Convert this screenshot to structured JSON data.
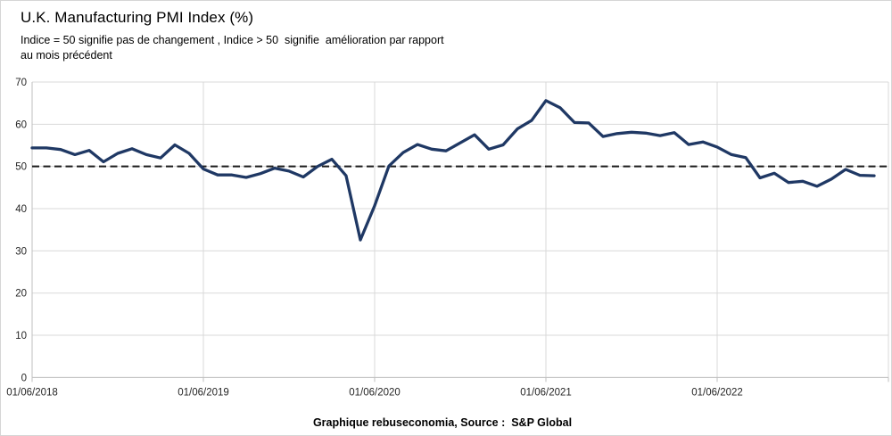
{
  "header": {
    "title": "U.K. Manufacturing PMI Index (%)",
    "subtitle_line1": "Indice = 50 signifie pas de changement , Indice > 50  signifie  amélioration par rapport",
    "subtitle_line2": "au mois précédent"
  },
  "footer": {
    "caption": "Graphique rebuseconomia, Source :  S&P Global"
  },
  "colors": {
    "series_line": "#1f3864",
    "reference_line": "#1a1a1a",
    "gridline": "#d9d9d9",
    "axis_line": "#bfbfbf",
    "tick_label": "#262626",
    "background": "#ffffff"
  },
  "chart_data": {
    "type": "line",
    "title": "U.K. Manufacturing PMI Index (%)",
    "xlabel": "",
    "ylabel": "",
    "ylim": [
      0,
      70
    ],
    "y_ticks": [
      0,
      10,
      20,
      30,
      40,
      50,
      60,
      70
    ],
    "x_tick_labels": [
      "01/06/2018",
      "01/06/2019",
      "01/06/2020",
      "01/06/2021",
      "01/06/2022"
    ],
    "grid": true,
    "legend_position": "none",
    "reference_line": {
      "value": 50,
      "style": "dashed",
      "color": "#1a1a1a"
    },
    "series": [
      {
        "name": "UK Manufacturing PMI",
        "color": "#1f3864",
        "dates": [
          "01/06/2018",
          "01/07/2018",
          "01/08/2018",
          "01/09/2018",
          "01/10/2018",
          "01/11/2018",
          "01/12/2018",
          "01/01/2019",
          "01/02/2019",
          "01/03/2019",
          "01/04/2019",
          "01/05/2019",
          "01/06/2019",
          "01/07/2019",
          "01/08/2019",
          "01/09/2019",
          "01/10/2019",
          "01/11/2019",
          "01/12/2019",
          "01/01/2020",
          "01/02/2020",
          "01/03/2020",
          "01/04/2020",
          "01/05/2020",
          "01/06/2020",
          "01/07/2020",
          "01/08/2020",
          "01/09/2020",
          "01/10/2020",
          "01/11/2020",
          "01/12/2020",
          "01/01/2021",
          "01/02/2021",
          "01/03/2021",
          "01/04/2021",
          "01/05/2021",
          "01/06/2021",
          "01/07/2021",
          "01/08/2021",
          "01/09/2021",
          "01/10/2021",
          "01/11/2021",
          "01/12/2021",
          "01/01/2022",
          "01/02/2022",
          "01/03/2022",
          "01/04/2022",
          "01/05/2022",
          "01/06/2022",
          "01/07/2022",
          "01/08/2022",
          "01/09/2022",
          "01/10/2022",
          "01/11/2022",
          "01/12/2022",
          "01/01/2023",
          "01/02/2023",
          "01/03/2023",
          "01/04/2023",
          "01/05/2023"
        ],
        "values": [
          54.4,
          54.4,
          54.0,
          52.8,
          53.8,
          51.1,
          53.1,
          54.2,
          52.8,
          52.0,
          55.1,
          53.1,
          49.4,
          48.0,
          48.0,
          47.4,
          48.3,
          49.6,
          48.9,
          47.5,
          50.0,
          51.7,
          47.8,
          32.6,
          40.7,
          50.1,
          53.3,
          55.2,
          54.1,
          53.7,
          55.6,
          57.5,
          54.1,
          55.1,
          58.9,
          60.9,
          65.6,
          63.9,
          60.4,
          60.3,
          57.1,
          57.8,
          58.1,
          57.9,
          57.3,
          58.0,
          55.2,
          55.8,
          54.6,
          52.8,
          52.1,
          47.3,
          48.4,
          46.2,
          46.5,
          45.3,
          47.0,
          49.3,
          47.9,
          47.8
        ]
      }
    ]
  }
}
